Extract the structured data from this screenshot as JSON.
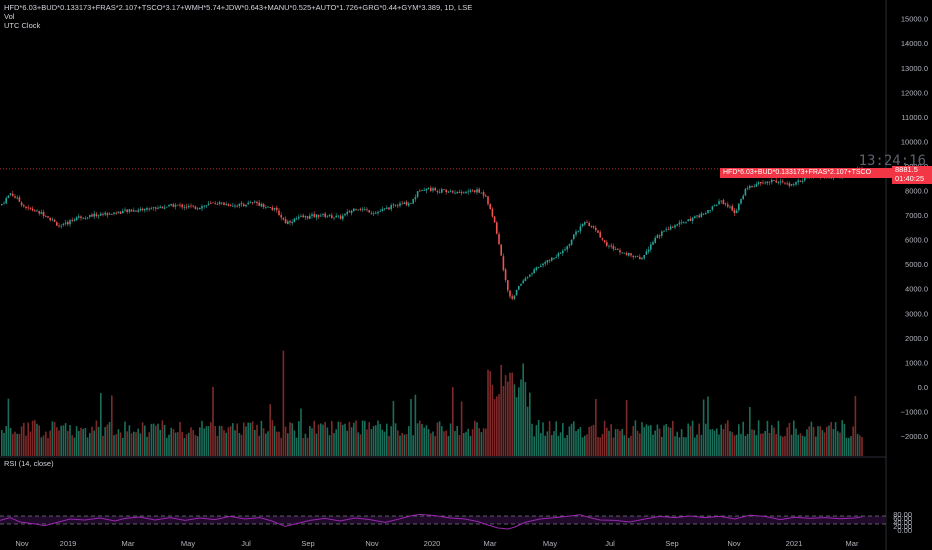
{
  "legend": {
    "symbol": "HFD*6.03+BUD*0.133173+FRAS*2.107+TSCO*3.17+WMH*5.74+JDW*0.643+MANU*0.525+AUTO*1.726+GRG*0.44+GYM*3.389, 1D, LSE",
    "vol": "Vol",
    "utc": "UTC Clock"
  },
  "clock": "13:24:16",
  "price_tag": {
    "label": "HFD*6.03+BUD*0.133173+FRAS*2.107+TSCO",
    "value": "8881.5",
    "countdown": "01:40:25"
  },
  "rsi_title": "RSI (14, close)",
  "colors": {
    "up": "#26a69a",
    "down": "#ef5350",
    "vol_up": "#1b6e5a",
    "vol_down": "#7f2a2a",
    "rsi_line": "#9c27b0",
    "rsi_band": "#1f0a2a",
    "price_line": "#f23645"
  },
  "chart_data": [
    {
      "type": "candlestick",
      "y_ticks": [
        "15000.0",
        "14000.0",
        "13000.0",
        "12000.0",
        "11000.0",
        "10000.0",
        "9000.0",
        "8000.0",
        "7000.0",
        "6000.0",
        "5000.0",
        "4000.0",
        "3000.0",
        "2000.0",
        "1000.0",
        "0.0",
        "−1000.0",
        "−2000.0"
      ],
      "x_ticks": [
        "Nov",
        "2019",
        "Mar",
        "May",
        "Jul",
        "Sep",
        "Nov",
        "2020",
        "Mar",
        "May",
        "Jul",
        "Sep",
        "Nov",
        "2021",
        "Mar"
      ],
      "last_price": 8881.5,
      "close_path": [
        [
          0,
          7400
        ],
        [
          10,
          7900
        ],
        [
          25,
          7300
        ],
        [
          45,
          7000
        ],
        [
          60,
          6500
        ],
        [
          75,
          6900
        ],
        [
          95,
          7000
        ],
        [
          115,
          7100
        ],
        [
          135,
          7200
        ],
        [
          155,
          7300
        ],
        [
          175,
          7400
        ],
        [
          195,
          7300
        ],
        [
          215,
          7500
        ],
        [
          235,
          7400
        ],
        [
          255,
          7500
        ],
        [
          275,
          7200
        ],
        [
          285,
          6700
        ],
        [
          300,
          6900
        ],
        [
          320,
          7000
        ],
        [
          340,
          6900
        ],
        [
          355,
          7300
        ],
        [
          375,
          7100
        ],
        [
          395,
          7400
        ],
        [
          410,
          7500
        ],
        [
          420,
          8100
        ],
        [
          440,
          8000
        ],
        [
          460,
          7900
        ],
        [
          475,
          8000
        ],
        [
          485,
          7800
        ],
        [
          495,
          6500
        ],
        [
          505,
          4300
        ],
        [
          510,
          3500
        ],
        [
          520,
          4200
        ],
        [
          535,
          4800
        ],
        [
          550,
          5200
        ],
        [
          565,
          5600
        ],
        [
          575,
          6300
        ],
        [
          585,
          6700
        ],
        [
          595,
          6400
        ],
        [
          605,
          5800
        ],
        [
          620,
          5500
        ],
        [
          640,
          5200
        ],
        [
          655,
          6100
        ],
        [
          670,
          6500
        ],
        [
          690,
          6800
        ],
        [
          705,
          7100
        ],
        [
          720,
          7600
        ],
        [
          735,
          7100
        ],
        [
          745,
          8100
        ],
        [
          760,
          8300
        ],
        [
          775,
          8400
        ],
        [
          790,
          8200
        ],
        [
          805,
          8500
        ],
        [
          820,
          8600
        ],
        [
          835,
          8500
        ],
        [
          850,
          8800
        ],
        [
          860,
          8880
        ]
      ]
    },
    {
      "type": "bar",
      "series_name": "Vol",
      "y_ticks": [
        "2000.0",
        "1000.0",
        "0.0",
        "−1000.0",
        "−2000.0"
      ],
      "spikes": [
        [
          283,
          2000
        ],
        [
          505,
          1000
        ],
        [
          510,
          1100
        ],
        [
          415,
          200
        ]
      ]
    },
    {
      "type": "line",
      "title": "RSI (14, close)",
      "y_ticks": [
        "80.00",
        "60.00",
        "40.00",
        "20.00",
        "0.00"
      ],
      "bands": [
        30,
        70
      ],
      "path": [
        [
          0,
          48
        ],
        [
          10,
          62
        ],
        [
          20,
          40
        ],
        [
          35,
          30
        ],
        [
          45,
          22
        ],
        [
          55,
          35
        ],
        [
          70,
          55
        ],
        [
          85,
          50
        ],
        [
          100,
          60
        ],
        [
          115,
          45
        ],
        [
          125,
          58
        ],
        [
          140,
          65
        ],
        [
          155,
          50
        ],
        [
          170,
          62
        ],
        [
          185,
          48
        ],
        [
          200,
          60
        ],
        [
          215,
          52
        ],
        [
          230,
          68
        ],
        [
          245,
          55
        ],
        [
          260,
          62
        ],
        [
          272,
          45
        ],
        [
          285,
          18
        ],
        [
          295,
          30
        ],
        [
          310,
          48
        ],
        [
          325,
          58
        ],
        [
          340,
          45
        ],
        [
          355,
          60
        ],
        [
          370,
          52
        ],
        [
          385,
          38
        ],
        [
          400,
          56
        ],
        [
          410,
          70
        ],
        [
          420,
          78
        ],
        [
          435,
          72
        ],
        [
          450,
          60
        ],
        [
          465,
          55
        ],
        [
          478,
          42
        ],
        [
          488,
          25
        ],
        [
          498,
          10
        ],
        [
          508,
          5
        ],
        [
          515,
          15
        ],
        [
          525,
          38
        ],
        [
          540,
          55
        ],
        [
          555,
          62
        ],
        [
          570,
          70
        ],
        [
          580,
          76
        ],
        [
          590,
          62
        ],
        [
          600,
          50
        ],
        [
          615,
          48
        ],
        [
          630,
          40
        ],
        [
          645,
          55
        ],
        [
          660,
          68
        ],
        [
          675,
          62
        ],
        [
          690,
          70
        ],
        [
          705,
          62
        ],
        [
          720,
          68
        ],
        [
          735,
          55
        ],
        [
          750,
          74
        ],
        [
          765,
          68
        ],
        [
          780,
          52
        ],
        [
          795,
          64
        ],
        [
          810,
          58
        ],
        [
          825,
          62
        ],
        [
          840,
          56
        ],
        [
          855,
          60
        ],
        [
          862,
          66
        ]
      ]
    }
  ]
}
